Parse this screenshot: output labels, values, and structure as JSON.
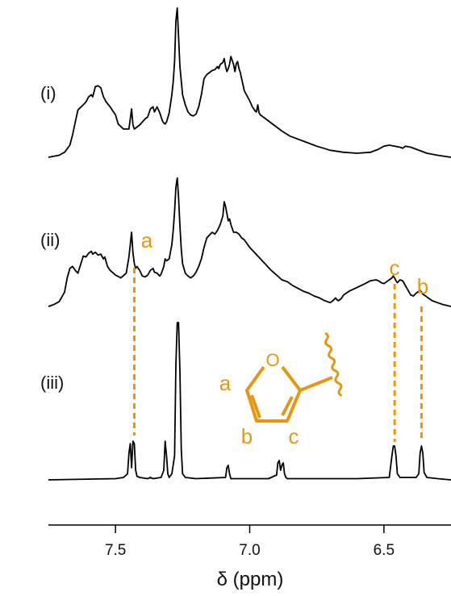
{
  "chart_data": {
    "type": "line",
    "x_unit_label": "δ (ppm)",
    "xlim": [
      7.75,
      6.25
    ],
    "x_reversed": true,
    "x_ticks": [
      7.5,
      7.0,
      6.5
    ],
    "x_tick_labels": [
      "7.5",
      "7.0",
      "6.5"
    ],
    "colors": {
      "spectrum": "#000000",
      "annotation": "#E8960F"
    },
    "series": [
      {
        "name": "(i)",
        "x": [
          7.75,
          7.71,
          7.69,
          7.67,
          7.66,
          7.65,
          7.64,
          7.62,
          7.61,
          7.6,
          7.59,
          7.585,
          7.575,
          7.565,
          7.555,
          7.545,
          7.535,
          7.52,
          7.5,
          7.49,
          7.47,
          7.45,
          7.44,
          7.435,
          7.43,
          7.42,
          7.41,
          7.4,
          7.39,
          7.38,
          7.37,
          7.36,
          7.355,
          7.345,
          7.335,
          7.33,
          7.325,
          7.32,
          7.315,
          7.31,
          7.3,
          7.29,
          7.285,
          7.28,
          7.275,
          7.27,
          7.265,
          7.26,
          7.25,
          7.24,
          7.23,
          7.22,
          7.21,
          7.2,
          7.19,
          7.18,
          7.17,
          7.16,
          7.15,
          7.14,
          7.13,
          7.12,
          7.115,
          7.11,
          7.1,
          7.095,
          7.09,
          7.085,
          7.08,
          7.075,
          7.07,
          7.065,
          7.06,
          7.055,
          7.05,
          7.045,
          7.04,
          7.035,
          7.03,
          7.02,
          7.0,
          6.99,
          6.98,
          6.975,
          6.97,
          6.965,
          6.96,
          6.94,
          6.92,
          6.9,
          6.88,
          6.85,
          6.8,
          6.75,
          6.7,
          6.65,
          6.6,
          6.55,
          6.52,
          6.5,
          6.48,
          6.46,
          6.44,
          6.43,
          6.42,
          6.4,
          6.38,
          6.36,
          6.34,
          6.3,
          6.25
        ],
        "y": [
          0.0,
          0.02,
          0.05,
          0.12,
          0.22,
          0.35,
          0.47,
          0.52,
          0.55,
          0.6,
          0.62,
          0.6,
          0.7,
          0.71,
          0.69,
          0.6,
          0.55,
          0.5,
          0.42,
          0.33,
          0.28,
          0.28,
          0.48,
          0.32,
          0.28,
          0.3,
          0.32,
          0.35,
          0.38,
          0.4,
          0.48,
          0.5,
          0.45,
          0.5,
          0.44,
          0.4,
          0.36,
          0.34,
          0.33,
          0.35,
          0.44,
          0.62,
          0.75,
          0.95,
          1.35,
          1.48,
          1.2,
          0.9,
          0.62,
          0.52,
          0.45,
          0.42,
          0.41,
          0.43,
          0.5,
          0.62,
          0.78,
          0.82,
          0.84,
          0.86,
          0.87,
          0.9,
          0.88,
          0.92,
          0.94,
          0.98,
          0.9,
          0.85,
          0.88,
          0.92,
          1.0,
          0.96,
          0.92,
          0.85,
          0.93,
          0.95,
          0.88,
          0.84,
          0.78,
          0.66,
          0.56,
          0.5,
          0.46,
          0.45,
          0.52,
          0.44,
          0.42,
          0.38,
          0.34,
          0.3,
          0.26,
          0.21,
          0.16,
          0.11,
          0.07,
          0.05,
          0.04,
          0.05,
          0.08,
          0.11,
          0.12,
          0.11,
          0.1,
          0.09,
          0.11,
          0.1,
          0.08,
          0.06,
          0.04,
          0.02,
          0.0
        ]
      },
      {
        "name": "(ii)",
        "x": [
          7.75,
          7.73,
          7.71,
          7.69,
          7.68,
          7.67,
          7.66,
          7.65,
          7.64,
          7.63,
          7.62,
          7.61,
          7.6,
          7.59,
          7.585,
          7.575,
          7.565,
          7.555,
          7.545,
          7.54,
          7.53,
          7.52,
          7.5,
          7.48,
          7.46,
          7.45,
          7.44,
          7.435,
          7.43,
          7.425,
          7.42,
          7.41,
          7.4,
          7.39,
          7.38,
          7.37,
          7.36,
          7.355,
          7.345,
          7.335,
          7.33,
          7.32,
          7.315,
          7.31,
          7.3,
          7.29,
          7.285,
          7.28,
          7.275,
          7.27,
          7.265,
          7.26,
          7.255,
          7.25,
          7.24,
          7.23,
          7.22,
          7.21,
          7.2,
          7.19,
          7.18,
          7.17,
          7.16,
          7.15,
          7.14,
          7.13,
          7.12,
          7.11,
          7.1,
          7.095,
          7.09,
          7.085,
          7.08,
          7.075,
          7.07,
          7.06,
          7.05,
          7.04,
          7.03,
          7.02,
          7.0,
          6.98,
          6.96,
          6.94,
          6.92,
          6.9,
          6.88,
          6.86,
          6.84,
          6.82,
          6.8,
          6.78,
          6.76,
          6.74,
          6.72,
          6.7,
          6.69,
          6.68,
          6.675,
          6.67,
          6.66,
          6.65,
          6.63,
          6.6,
          6.57,
          6.55,
          6.53,
          6.52,
          6.51,
          6.5,
          6.49,
          6.48,
          6.47,
          6.465,
          6.46,
          6.455,
          6.45,
          6.44,
          6.43,
          6.42,
          6.41,
          6.4,
          6.39,
          6.38,
          6.37,
          6.365,
          6.36,
          6.355,
          6.35,
          6.34,
          6.33,
          6.32,
          6.3,
          6.28,
          6.25
        ],
        "y": [
          0.0,
          0.02,
          0.05,
          0.15,
          0.3,
          0.4,
          0.42,
          0.38,
          0.35,
          0.44,
          0.53,
          0.52,
          0.56,
          0.58,
          0.55,
          0.57,
          0.54,
          0.55,
          0.5,
          0.52,
          0.42,
          0.38,
          0.33,
          0.3,
          0.35,
          0.52,
          0.78,
          0.56,
          0.45,
          0.4,
          0.42,
          0.38,
          0.32,
          0.31,
          0.33,
          0.38,
          0.4,
          0.36,
          0.35,
          0.32,
          0.34,
          0.42,
          0.5,
          0.48,
          0.5,
          0.65,
          0.8,
          1.0,
          1.25,
          1.35,
          1.15,
          0.85,
          0.6,
          0.45,
          0.35,
          0.32,
          0.3,
          0.32,
          0.36,
          0.42,
          0.5,
          0.62,
          0.72,
          0.75,
          0.78,
          0.76,
          0.8,
          0.86,
          0.95,
          1.1,
          1.05,
          0.98,
          0.9,
          0.92,
          0.86,
          0.78,
          0.78,
          0.76,
          0.72,
          0.7,
          0.62,
          0.56,
          0.5,
          0.44,
          0.38,
          0.33,
          0.28,
          0.26,
          0.22,
          0.19,
          0.16,
          0.14,
          0.11,
          0.09,
          0.06,
          0.04,
          0.06,
          0.09,
          0.07,
          0.06,
          0.08,
          0.12,
          0.16,
          0.2,
          0.24,
          0.27,
          0.28,
          0.27,
          0.25,
          0.24,
          0.26,
          0.28,
          0.3,
          0.32,
          0.3,
          0.27,
          0.25,
          0.28,
          0.27,
          0.22,
          0.17,
          0.12,
          0.11,
          0.14,
          0.16,
          0.17,
          0.15,
          0.13,
          0.12,
          0.1,
          0.08,
          0.06,
          0.04,
          0.02,
          0.0
        ]
      },
      {
        "name": "(iii)",
        "x": [
          7.75,
          7.5,
          7.47,
          7.455,
          7.45,
          7.445,
          7.44,
          7.435,
          7.43,
          7.425,
          7.42,
          7.41,
          7.38,
          7.37,
          7.36,
          7.33,
          7.32,
          7.315,
          7.31,
          7.305,
          7.3,
          7.29,
          7.28,
          7.275,
          7.27,
          7.265,
          7.26,
          7.255,
          7.25,
          7.24,
          7.2,
          7.09,
          7.085,
          7.08,
          7.075,
          7.07,
          6.93,
          6.9,
          6.895,
          6.89,
          6.885,
          6.88,
          6.875,
          6.87,
          6.865,
          6.86,
          6.85,
          6.6,
          6.48,
          6.47,
          6.465,
          6.46,
          6.455,
          6.45,
          6.44,
          6.38,
          6.37,
          6.365,
          6.36,
          6.355,
          6.35,
          6.34,
          6.3,
          6.25
        ],
        "y": [
          0.0,
          0.01,
          0.02,
          0.05,
          0.22,
          0.3,
          0.1,
          0.32,
          0.3,
          0.08,
          0.03,
          0.02,
          0.01,
          0.02,
          0.01,
          0.02,
          0.08,
          0.32,
          0.2,
          0.05,
          0.02,
          0.05,
          0.2,
          0.95,
          1.3,
          1.3,
          0.9,
          0.25,
          0.05,
          0.02,
          0.01,
          0.02,
          0.1,
          0.12,
          0.05,
          0.01,
          0.01,
          0.04,
          0.14,
          0.16,
          0.08,
          0.12,
          0.14,
          0.05,
          0.02,
          0.01,
          0.01,
          0.01,
          0.02,
          0.2,
          0.28,
          0.28,
          0.2,
          0.05,
          0.02,
          0.02,
          0.05,
          0.22,
          0.28,
          0.22,
          0.06,
          0.02,
          0.01,
          0.0
        ]
      }
    ]
  },
  "assignments": [
    {
      "label": "a",
      "x": 7.43,
      "x_error": null
    },
    {
      "label": "c",
      "x": 6.46
    },
    {
      "label": "b",
      "x": 6.36
    }
  ],
  "structure": {
    "ring_labels": [
      "a",
      "b",
      "c"
    ],
    "heteroatom": "O"
  }
}
